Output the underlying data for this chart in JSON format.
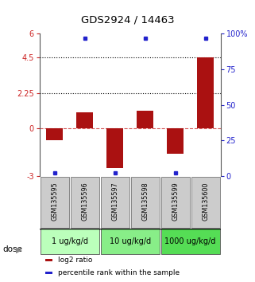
{
  "title": "GDS2924 / 14463",
  "samples": [
    "GSM135595",
    "GSM135596",
    "GSM135597",
    "GSM135598",
    "GSM135599",
    "GSM135600"
  ],
  "log2_ratio": [
    -0.72,
    1.0,
    -2.5,
    1.1,
    -1.6,
    4.5
  ],
  "percentile_rank": [
    2,
    97,
    2,
    97,
    2,
    97
  ],
  "bar_color": "#aa1111",
  "square_color": "#2222cc",
  "ylim_left": [
    -3,
    6
  ],
  "ylim_right": [
    0,
    100
  ],
  "yticks_left": [
    -3,
    0,
    2.25,
    4.5,
    6
  ],
  "ytick_labels_left": [
    "-3",
    "0",
    "2.25",
    "4.5",
    "6"
  ],
  "yticks_right": [
    0,
    25,
    50,
    75,
    100
  ],
  "ytick_labels_right": [
    "0",
    "25",
    "50",
    "75",
    "100%"
  ],
  "hline_dashed_color": "#cc3333",
  "hlines_dotted": [
    4.5,
    2.25
  ],
  "dose_groups": [
    {
      "label": "1 ug/kg/d",
      "samples": [
        0,
        1
      ]
    },
    {
      "label": "10 ug/kg/d",
      "samples": [
        2,
        3
      ]
    },
    {
      "label": "1000 ug/kg/d",
      "samples": [
        4,
        5
      ]
    }
  ],
  "dose_group_colors": [
    "#bbffbb",
    "#88ee88",
    "#55dd55"
  ],
  "dose_label": "dose",
  "legend_items": [
    {
      "color": "#aa1111",
      "label": "log2 ratio"
    },
    {
      "color": "#2222cc",
      "label": "percentile rank within the sample"
    }
  ],
  "bg_color": "#ffffff",
  "tick_label_color_left": "#cc2222",
  "tick_label_color_right": "#2222cc",
  "sample_box_color": "#cccccc",
  "bar_width": 0.55
}
